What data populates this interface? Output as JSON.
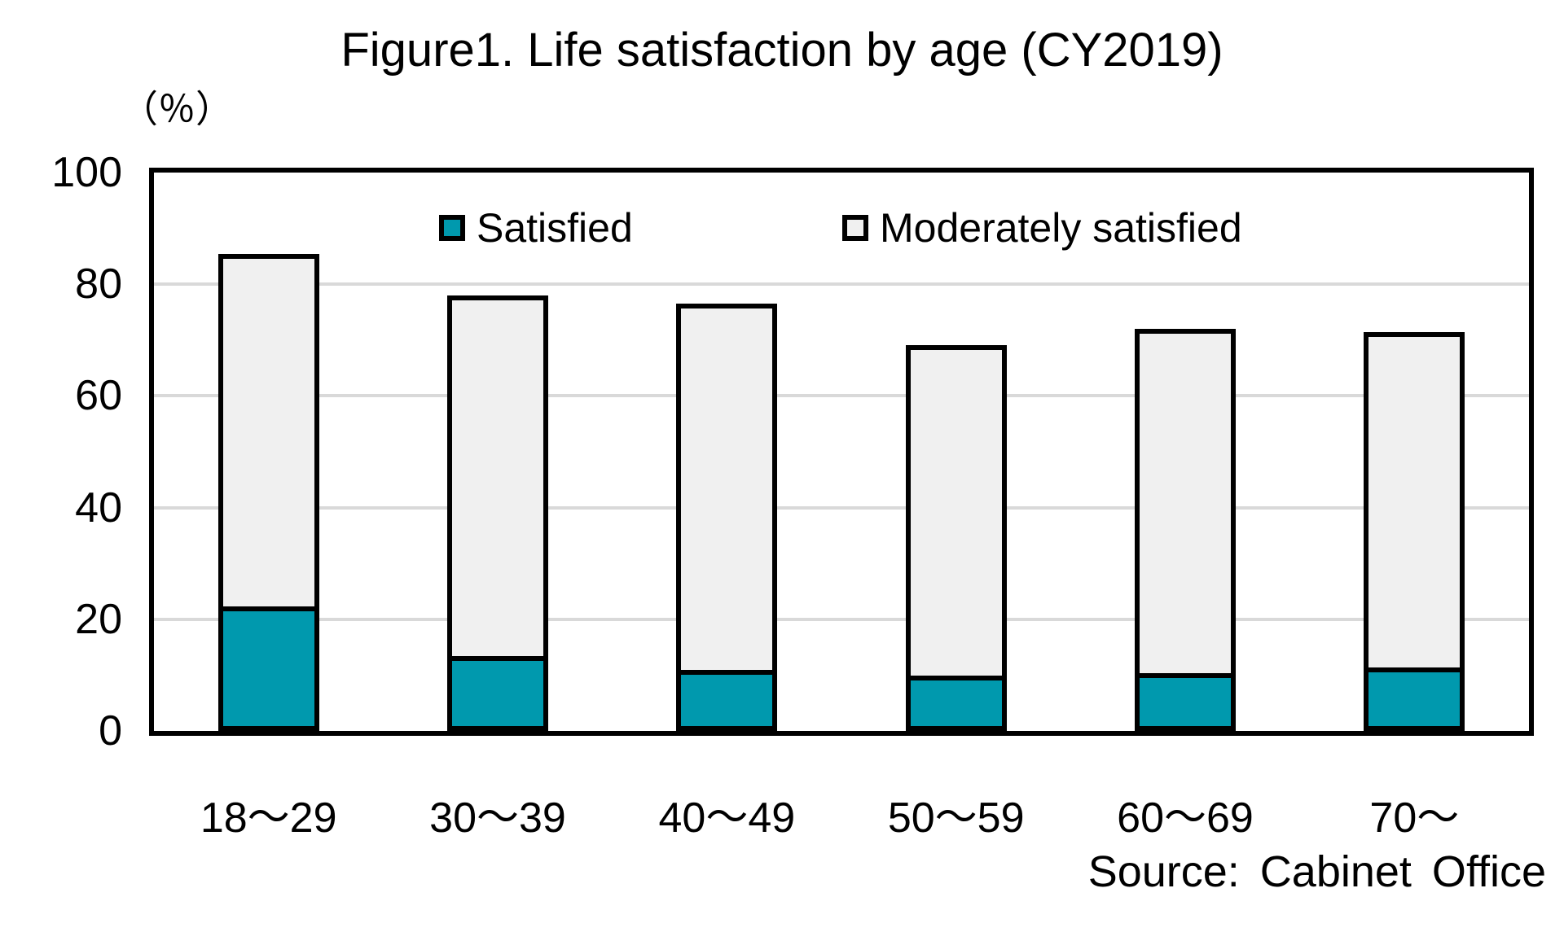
{
  "chart_data": {
    "type": "bar",
    "stacked": true,
    "title": "Figure1. Life satisfaction by age (CY2019)",
    "unit_label": "（％）",
    "categories": [
      "18〜29",
      "30〜39",
      "40〜49",
      "50〜59",
      "60〜69",
      "70〜"
    ],
    "series": [
      {
        "name": "Satisfied",
        "color": "#0099ae",
        "values": [
          21.5,
          12.5,
          10.0,
          9.0,
          9.5,
          10.5
        ]
      },
      {
        "name": "Moderately satisfied",
        "color": "#f0f0f0",
        "values": [
          64.0,
          65.5,
          66.5,
          60.0,
          62.5,
          61.0
        ]
      }
    ],
    "totals": [
      85.5,
      78.0,
      76.5,
      69.0,
      72.0,
      71.5
    ],
    "ylabel": "",
    "xlabel": "",
    "ylim": [
      0,
      100
    ],
    "yticks": [
      0,
      20,
      40,
      60,
      80,
      100
    ],
    "grid": "horizontal-gridlines",
    "gridline_color": "#d9d9d9",
    "axis_color": "#000000",
    "legend_position": "top-inside",
    "source": "Source: Cabinet Office"
  }
}
